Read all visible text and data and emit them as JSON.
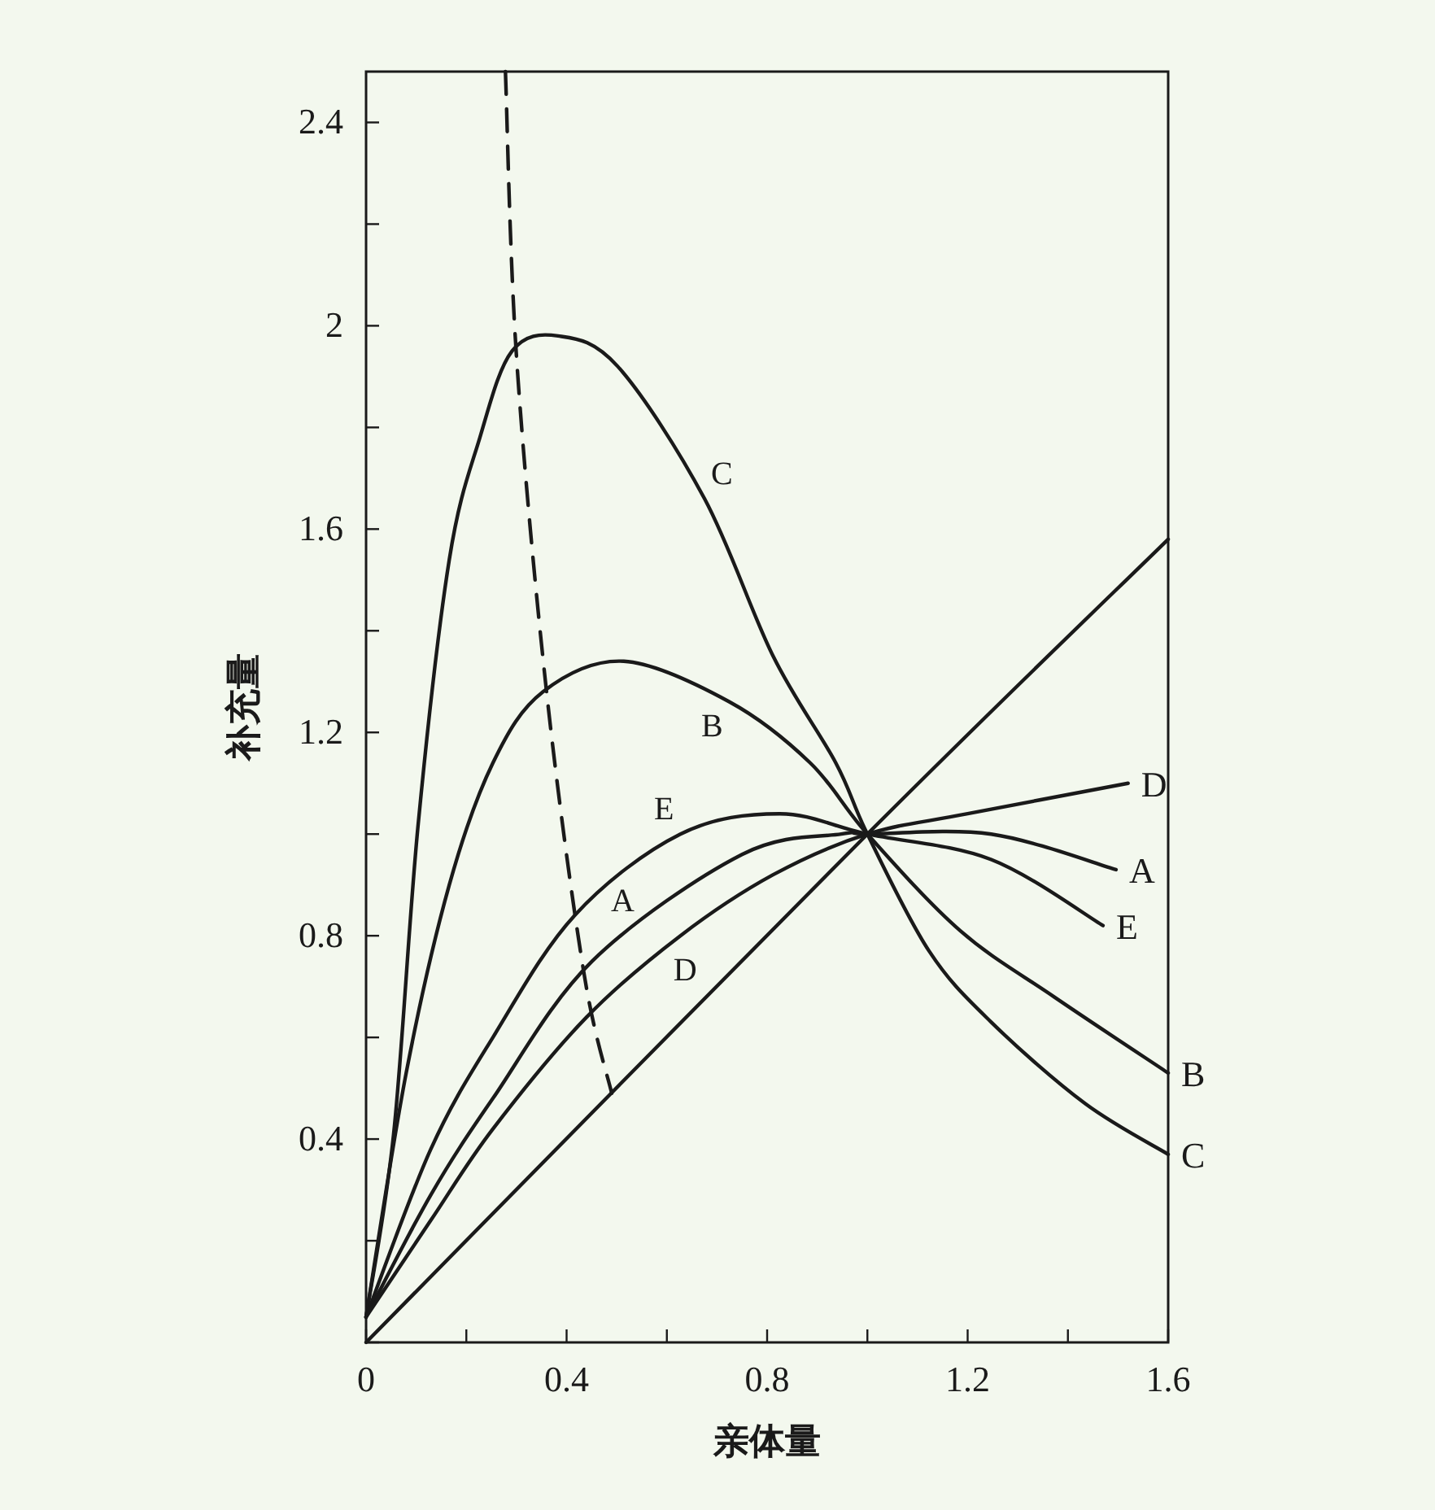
{
  "chart_data": {
    "type": "line",
    "xlabel": "亲体量",
    "ylabel": "补充量",
    "xlim": [
      0,
      1.6
    ],
    "ylim": [
      0,
      2.5
    ],
    "xticks": [
      0,
      {
        "value": 0.2,
        "label": null
      },
      0.4,
      {
        "value": 0.6,
        "label": null
      },
      0.8,
      {
        "value": 1.0,
        "label": null
      },
      1.2,
      {
        "value": 1.4,
        "label": null
      },
      1.6
    ],
    "yticks": [
      {
        "value": 0,
        "label": null
      },
      {
        "value": 0.2,
        "label": null
      },
      0.4,
      {
        "value": 0.6,
        "label": null
      },
      0.8,
      {
        "value": 1.0,
        "label": null
      },
      1.2,
      {
        "value": 1.4,
        "label": null
      },
      1.6,
      {
        "value": 1.8,
        "label": null
      },
      2.0,
      {
        "value": 2.2,
        "label": null
      },
      2.4
    ],
    "series": [
      {
        "name": "C",
        "color": "#1a1a1a",
        "x": [
          0,
          0.055,
          0.104,
          0.166,
          0.227,
          0.291,
          0.383,
          0.502,
          0.675,
          0.812,
          0.937,
          1.0,
          1.123,
          1.247,
          1.434,
          1.6
        ],
        "values": [
          0.05,
          0.41,
          1.02,
          1.54,
          1.78,
          1.95,
          1.98,
          1.92,
          1.66,
          1.35,
          1.14,
          1.0,
          0.77,
          0.63,
          0.47,
          0.37
        ]
      },
      {
        "name": "B",
        "color": "#1a1a1a",
        "x": [
          0,
          0.08,
          0.166,
          0.253,
          0.353,
          0.514,
          0.725,
          0.886,
          1.0,
          1.185,
          1.372,
          1.6
        ],
        "values": [
          0.05,
          0.53,
          0.9,
          1.14,
          1.28,
          1.34,
          1.26,
          1.14,
          1.0,
          0.81,
          0.68,
          0.53
        ]
      },
      {
        "name": "E",
        "color": "#1a1a1a",
        "x": [
          0,
          0.129,
          0.253,
          0.416,
          0.627,
          0.825,
          1.0,
          1.247,
          1.47
        ],
        "values": [
          0.05,
          0.38,
          0.6,
          0.84,
          1.0,
          1.04,
          1.0,
          0.95,
          0.82
        ]
      },
      {
        "name": "A",
        "color": "#1a1a1a",
        "x": [
          0,
          0.129,
          0.253,
          0.451,
          0.75,
          0.948,
          1.0,
          1.247,
          1.496
        ],
        "values": [
          0.05,
          0.29,
          0.48,
          0.75,
          0.96,
          1.0,
          1.0,
          1.0,
          0.93
        ]
      },
      {
        "name": "D",
        "color": "#1a1a1a",
        "x": [
          0,
          0.129,
          0.253,
          0.44,
          0.627,
          0.812,
          1.0,
          1.2,
          1.52
        ],
        "values": [
          0.05,
          0.24,
          0.42,
          0.64,
          0.8,
          0.92,
          1.0,
          1.04,
          1.1
        ]
      },
      {
        "color": "#1a1a1a",
        "x": [
          0,
          1.0,
          1.6
        ],
        "values": [
          0,
          1.0,
          1.58
        ]
      },
      {
        "color": "#1a1a1a",
        "line_style": "dashed",
        "x": [
          0.278,
          0.3,
          0.36,
          0.434,
          0.49
        ],
        "values": [
          2.5,
          1.94,
          1.28,
          0.73,
          0.49
        ]
      }
    ],
    "annotations": [
      {
        "text": "C",
        "x": 0.675,
        "y": 1.66
      },
      {
        "text": "B",
        "x": 0.725,
        "y": 1.26
      },
      {
        "text": "E",
        "x": 0.627,
        "y": 1.0
      },
      {
        "text": "A",
        "x": 0.55,
        "y": 0.82
      },
      {
        "text": "D",
        "x": 0.6,
        "y": 0.78
      }
    ]
  }
}
